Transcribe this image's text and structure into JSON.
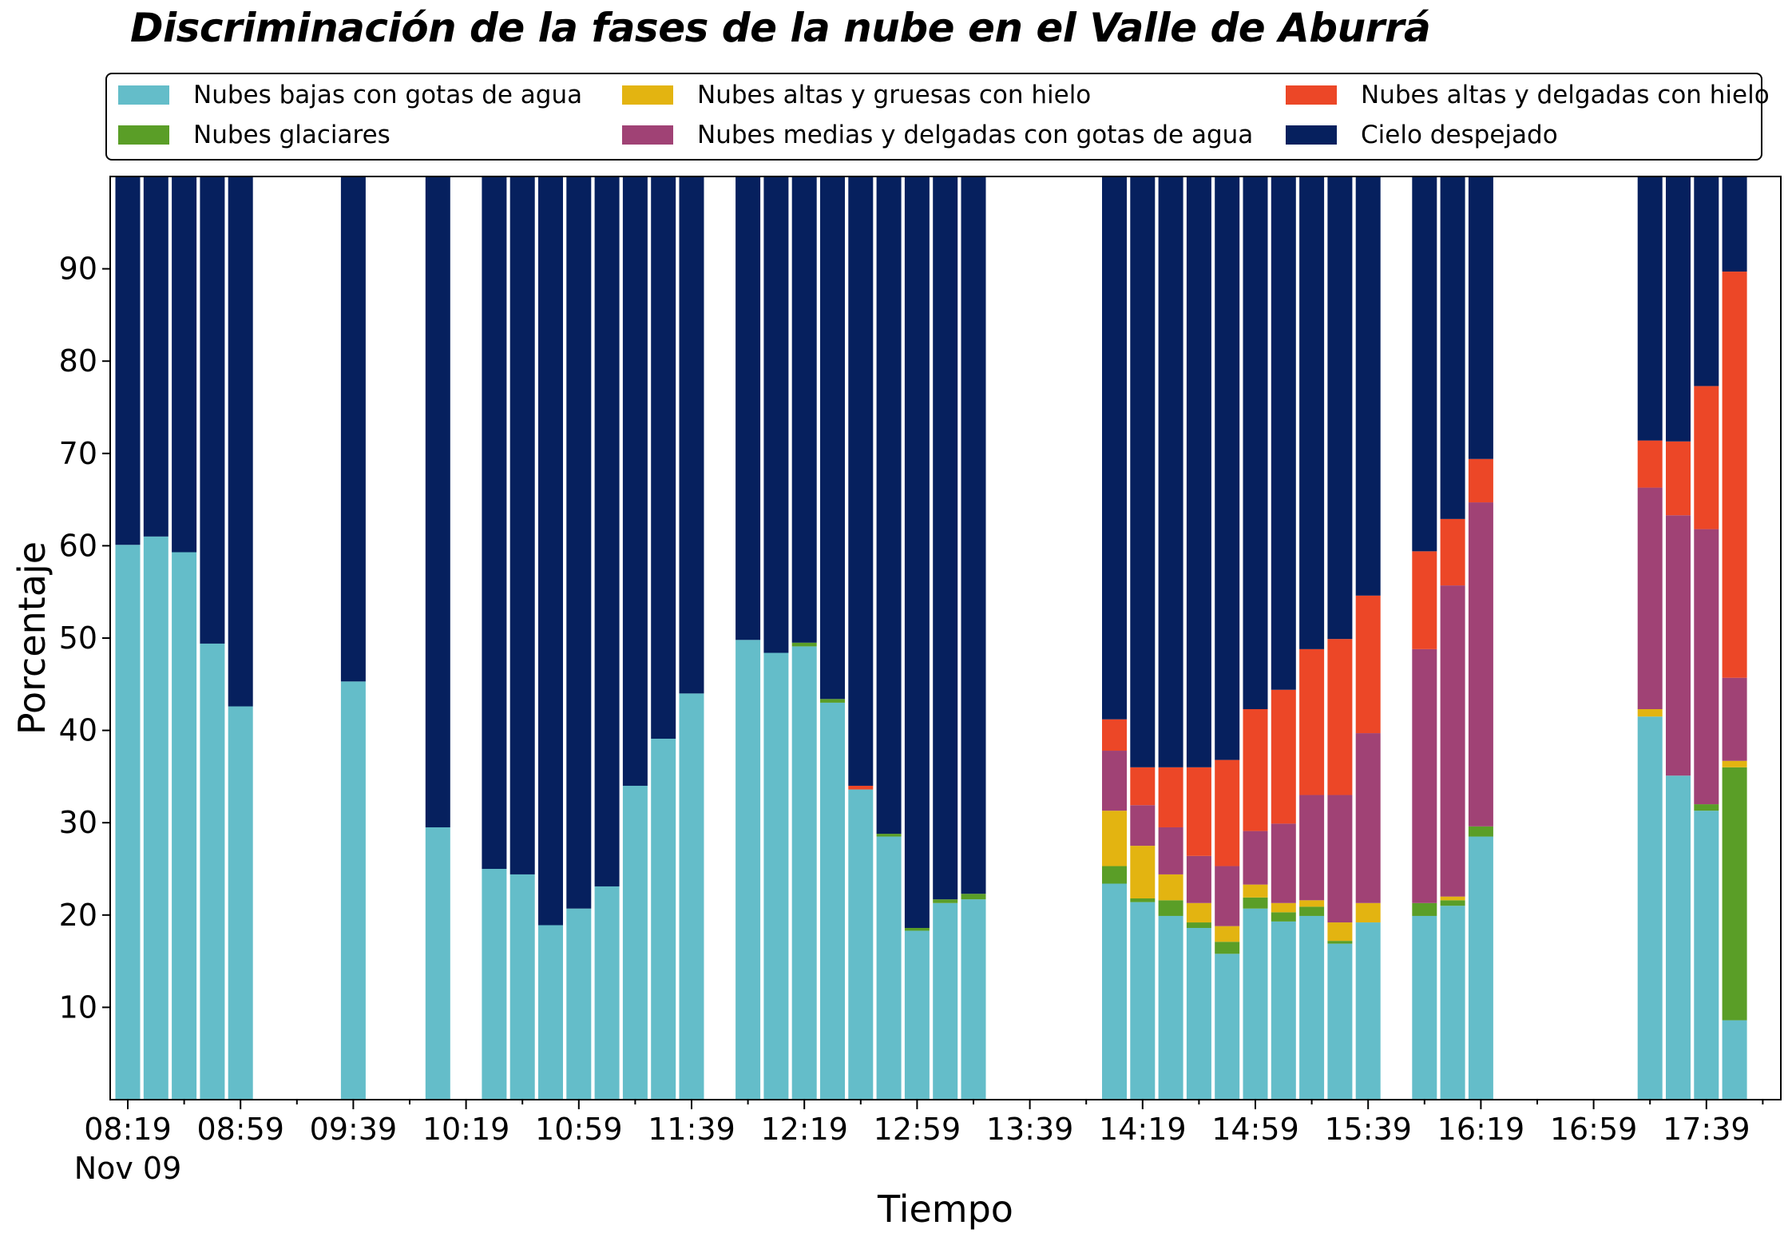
{
  "chart_data": {
    "type": "bar",
    "stacked": true,
    "title": "Discriminación de la fases de la nube en el Valle de Aburrá",
    "xlabel": "Tiempo",
    "ylabel": "Porcentaje",
    "ylim": [
      0,
      100
    ],
    "yticks": [
      10,
      20,
      30,
      40,
      50,
      60,
      70,
      80,
      90
    ],
    "xticks": [
      "08:19",
      "08:59",
      "09:39",
      "10:19",
      "10:59",
      "11:39",
      "12:19",
      "12:59",
      "13:39",
      "14:19",
      "14:59",
      "15:39",
      "16:19",
      "16:59",
      "17:39"
    ],
    "x_date_label": "Nov 09",
    "legend_position": "top",
    "grid": false,
    "x": [
      "08:19",
      "08:29",
      "08:39",
      "08:49",
      "08:59",
      "09:39",
      "10:09",
      "10:29",
      "10:39",
      "10:49",
      "10:59",
      "11:09",
      "11:19",
      "11:29",
      "11:39",
      "11:59",
      "12:09",
      "12:19",
      "12:29",
      "12:39",
      "12:49",
      "12:59",
      "13:09",
      "13:19",
      "14:09",
      "14:19",
      "14:29",
      "14:39",
      "14:49",
      "14:59",
      "15:09",
      "15:19",
      "15:29",
      "15:39",
      "15:59",
      "16:09",
      "16:19",
      "17:19",
      "17:29",
      "17:39",
      "17:49"
    ],
    "series": [
      {
        "name": "Nubes bajas con gotas de agua",
        "color": "#64bdc9",
        "values": [
          60.1,
          61.0,
          59.3,
          49.4,
          42.6,
          45.3,
          29.5,
          25.0,
          24.4,
          18.9,
          20.7,
          23.1,
          34.0,
          39.1,
          44.0,
          49.8,
          48.4,
          49.1,
          43.0,
          33.6,
          28.5,
          18.3,
          21.3,
          21.7,
          23.4,
          21.4,
          19.9,
          18.6,
          15.8,
          20.7,
          19.3,
          19.9,
          16.9,
          19.2,
          19.9,
          21.0,
          28.5,
          41.5,
          35.1,
          31.3,
          8.6
        ]
      },
      {
        "name": "Nubes glaciares",
        "color": "#5a9e27",
        "values": [
          0,
          0,
          0,
          0,
          0,
          0,
          0,
          0,
          0,
          0,
          0,
          0,
          0,
          0,
          0,
          0,
          0,
          0.4,
          0.4,
          0,
          0.3,
          0.3,
          0.4,
          0.6,
          1.9,
          0.4,
          1.7,
          0.6,
          1.3,
          1.2,
          1.0,
          1.0,
          0.3,
          0,
          1.4,
          0.6,
          1.1,
          0,
          0,
          0.7,
          27.4
        ]
      },
      {
        "name": "Nubes altas y gruesas con hielo",
        "color": "#e3b411",
        "values": [
          0,
          0,
          0,
          0,
          0,
          0,
          0,
          0,
          0,
          0,
          0,
          0,
          0,
          0,
          0,
          0,
          0,
          0,
          0,
          0,
          0,
          0,
          0,
          0,
          6.0,
          5.7,
          2.8,
          2.1,
          1.7,
          1.4,
          1.0,
          0.7,
          2.0,
          2.1,
          0,
          0.4,
          0,
          0.8,
          0,
          0,
          0.7
        ]
      },
      {
        "name": "Nubes medias y delgadas con gotas de agua",
        "color": "#a04275",
        "values": [
          0,
          0,
          0,
          0,
          0,
          0,
          0,
          0,
          0,
          0,
          0,
          0,
          0,
          0,
          0,
          0,
          0,
          0,
          0,
          0,
          0,
          0,
          0,
          0,
          6.5,
          4.4,
          5.1,
          5.1,
          6.5,
          5.8,
          8.6,
          11.4,
          13.8,
          18.4,
          27.5,
          33.7,
          35.1,
          24.0,
          28.2,
          29.8,
          9.0
        ]
      },
      {
        "name": "Nubes altas y delgadas con hielo",
        "color": "#ec4727",
        "values": [
          0,
          0,
          0,
          0,
          0,
          0,
          0,
          0,
          0,
          0,
          0,
          0,
          0,
          0,
          0,
          0,
          0,
          0,
          0,
          0.4,
          0,
          0,
          0,
          0,
          3.4,
          4.1,
          6.5,
          9.6,
          11.5,
          13.2,
          14.5,
          15.8,
          16.9,
          14.9,
          10.6,
          7.2,
          4.7,
          5.1,
          8.0,
          15.5,
          44.0
        ]
      },
      {
        "name": "Cielo despejado",
        "color": "#06205e",
        "values": [
          39.9,
          39.0,
          40.7,
          50.6,
          57.4,
          54.7,
          70.5,
          75.0,
          75.6,
          81.1,
          79.3,
          76.9,
          66.0,
          60.9,
          56.0,
          50.2,
          51.6,
          50.5,
          56.6,
          66.0,
          71.2,
          81.4,
          78.3,
          77.7,
          58.8,
          64.0,
          64.0,
          64.0,
          63.2,
          57.7,
          55.6,
          51.2,
          50.1,
          45.4,
          40.6,
          37.1,
          30.6,
          28.6,
          28.7,
          22.7,
          10.3
        ]
      }
    ]
  }
}
